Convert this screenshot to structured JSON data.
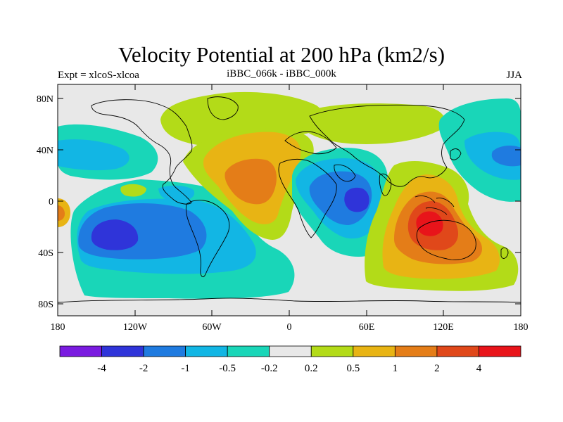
{
  "title": "Velocity Potential at 200 hPa (km2/s)",
  "subtitle_left": "Expt = xlcoS-xlcoa",
  "subtitle_center": "iBBC_066k - iBBC_000k",
  "subtitle_right": "JJA",
  "lat_ticks": [
    "80N",
    "40N",
    "0",
    "40S",
    "80S"
  ],
  "lon_ticks": [
    "180",
    "120W",
    "60W",
    "0",
    "60E",
    "120E",
    "180"
  ],
  "colorbar": {
    "colors": [
      "#7a1be0",
      "#2f34d9",
      "#1f7be0",
      "#12b6e4",
      "#19d6b8",
      "#e8e8e8",
      "#b3db18",
      "#e8b414",
      "#e47d18",
      "#e0481a",
      "#e8141a"
    ],
    "labels": [
      "-4",
      "-2",
      "-1",
      "-0.5",
      "-0.2",
      "0.2",
      "0.5",
      "1",
      "2",
      "4"
    ]
  },
  "colors": {
    "ocean_background": "#e8e8e8",
    "coastline": "#000000"
  }
}
